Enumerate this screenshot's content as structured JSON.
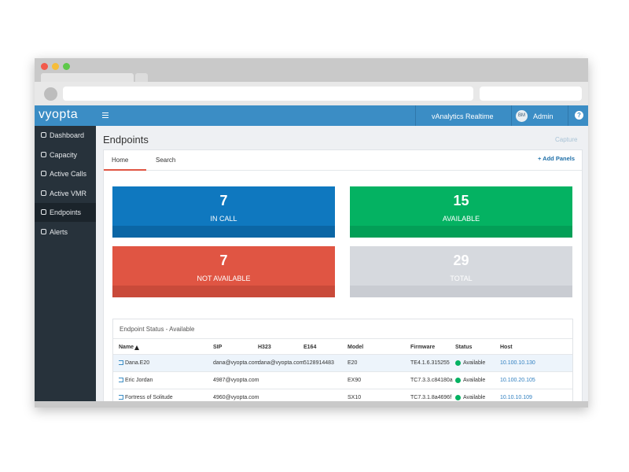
{
  "app": {
    "brand": "vyopta",
    "header_menu": "vAnalytics Realtime",
    "avatar": "BM",
    "user": "Admin",
    "help": "?"
  },
  "sidebar": {
    "items": [
      "Dashboard",
      "Capacity",
      "Active Calls",
      "Active VMR",
      "Endpoints",
      "Alerts"
    ],
    "active": 4
  },
  "page": {
    "title": "Endpoints",
    "capture": "Capture",
    "tabs": [
      "Home",
      "Search"
    ],
    "add_panels": "+ Add Panels"
  },
  "tiles": [
    {
      "value": 7,
      "label": "IN CALL",
      "color": "#0f78bf",
      "strip": "#0b66a5"
    },
    {
      "value": 15,
      "label": "AVAILABLE",
      "color": "#04b262",
      "strip": "#039f57"
    },
    {
      "value": 7,
      "label": "NOT AVAILABLE",
      "color": "#e05543",
      "strip": "#c94a3a"
    },
    {
      "value": 29,
      "label": "TOTAL",
      "color": "#d6d9de",
      "strip": "#c9ccd2"
    }
  ],
  "table": {
    "title": "Endpoint Status - Available",
    "columns": [
      "Name",
      "SIP",
      "H323",
      "E164",
      "Model",
      "Firmware",
      "Status",
      "Host"
    ],
    "rows": [
      {
        "name": "Dana.E20",
        "sip": "dana@vyopta.com",
        "h323": "dana@vyopta.com",
        "e164": "5128914483",
        "model": "E20",
        "firmware": "TE4.1.6.315255",
        "status": "Available",
        "host": "10.100.10.130"
      },
      {
        "name": "Eric Jordan",
        "sip": "4987@vyopta.com",
        "model": "EX90",
        "firmware": "TC7.3.3.c84180a",
        "status": "Available",
        "host": "10.100.20.105"
      },
      {
        "name": "Fortress of Solitude",
        "sip": "4960@vyopta.com",
        "model": "SX10",
        "firmware": "TC7.3.1.8a4696f",
        "status": "Available",
        "host": "10.10.10.109"
      }
    ]
  }
}
